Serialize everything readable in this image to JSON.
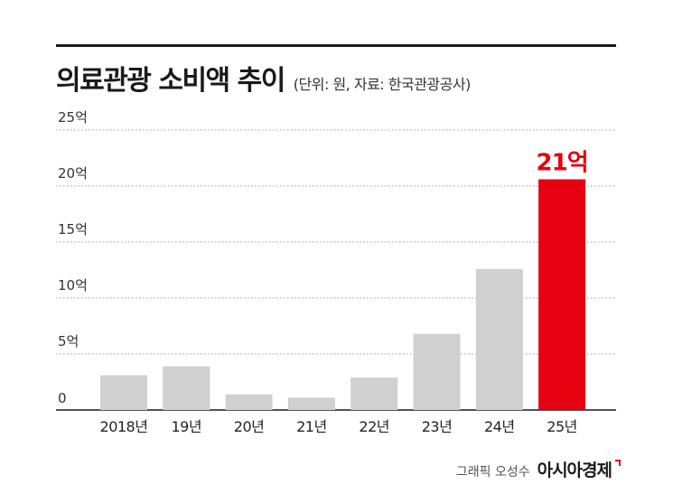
{
  "header": {
    "title": "의료관광 소비액 추이",
    "subtitle": "(단위: 원, 자료: 한국관광공사)"
  },
  "chart_data": {
    "type": "bar",
    "categories": [
      "2018년",
      "19년",
      "20년",
      "21년",
      "22년",
      "23년",
      "24년",
      "25년"
    ],
    "values": [
      3.1,
      3.9,
      1.4,
      1.1,
      2.9,
      6.8,
      12.6,
      20.6
    ],
    "ylim": [
      0,
      25
    ],
    "yticks": [
      {
        "value": 0,
        "label": "0"
      },
      {
        "value": 5,
        "label": "5억"
      },
      {
        "value": 10,
        "label": "10억"
      },
      {
        "value": 15,
        "label": "15억"
      },
      {
        "value": 20,
        "label": "20억"
      },
      {
        "value": 25,
        "label": "25억"
      }
    ],
    "grid": true,
    "highlight_index": 7,
    "highlight_label": "21억",
    "colors": {
      "bar": "#d0d0d0",
      "highlight": "#e60012",
      "grid": "#9a9a9a",
      "axis": "#1a1a1a"
    }
  },
  "footer": {
    "credit": "그래픽 오성수",
    "brand": "아시아경제"
  }
}
